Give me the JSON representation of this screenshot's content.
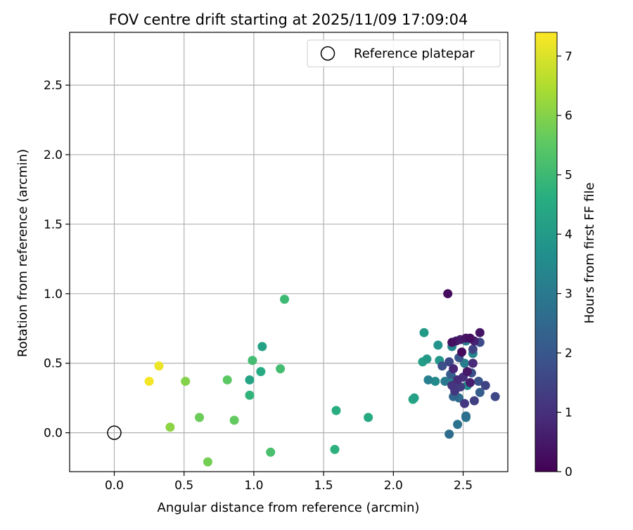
{
  "chart_data": {
    "type": "scatter",
    "title": "FOV centre drift starting at 2025/11/09 17:09:04",
    "xlabel": "Angular distance from reference (arcmin)",
    "ylabel": "Rotation from reference (arcmin)",
    "xlim": [
      -0.32,
      2.82
    ],
    "ylim": [
      -0.28,
      2.88
    ],
    "xticks": [
      "0.0",
      "0.5",
      "1.0",
      "1.5",
      "2.0",
      "2.5"
    ],
    "xtick_values": [
      0.0,
      0.5,
      1.0,
      1.5,
      2.0,
      2.5
    ],
    "yticks": [
      "0.0",
      "0.5",
      "1.0",
      "1.5",
      "2.0",
      "2.5"
    ],
    "ytick_values": [
      0.0,
      0.5,
      1.0,
      1.5,
      2.0,
      2.5
    ],
    "grid": true,
    "legend": {
      "location": "upper right",
      "label": "Reference platepar"
    },
    "reference_point": {
      "x": 0.0,
      "y": 0.0
    },
    "colorbar": {
      "label": "Hours from first FF file",
      "colormap": "viridis",
      "range": [
        0,
        7.4
      ],
      "ticks": [
        "0",
        "1",
        "2",
        "3",
        "4",
        "5",
        "6",
        "7"
      ],
      "tick_values": [
        0,
        1,
        2,
        3,
        4,
        5,
        6,
        7
      ]
    },
    "points": [
      {
        "x": 2.39,
        "y": 1.0,
        "h": 0.2
      },
      {
        "x": 2.62,
        "y": 0.72,
        "h": 0.4
      },
      {
        "x": 2.42,
        "y": 0.65,
        "h": 0.3
      },
      {
        "x": 2.45,
        "y": 0.66,
        "h": 0.5
      },
      {
        "x": 2.48,
        "y": 0.67,
        "h": 0.6
      },
      {
        "x": 2.52,
        "y": 0.68,
        "h": 0.4
      },
      {
        "x": 2.55,
        "y": 0.68,
        "h": 0.3
      },
      {
        "x": 2.58,
        "y": 0.66,
        "h": 0.7
      },
      {
        "x": 2.49,
        "y": 0.58,
        "h": 0.2
      },
      {
        "x": 2.43,
        "y": 0.46,
        "h": 0.8
      },
      {
        "x": 2.46,
        "y": 0.38,
        "h": 0.9
      },
      {
        "x": 2.5,
        "y": 0.4,
        "h": 1.0
      },
      {
        "x": 2.53,
        "y": 0.44,
        "h": 0.5
      },
      {
        "x": 2.55,
        "y": 0.36,
        "h": 0.6
      },
      {
        "x": 2.42,
        "y": 0.34,
        "h": 1.1
      },
      {
        "x": 2.44,
        "y": 0.3,
        "h": 1.2
      },
      {
        "x": 2.48,
        "y": 0.33,
        "h": 1.3
      },
      {
        "x": 2.57,
        "y": 0.5,
        "h": 0.9
      },
      {
        "x": 2.51,
        "y": 0.21,
        "h": 1.2
      },
      {
        "x": 2.58,
        "y": 0.23,
        "h": 1.4
      },
      {
        "x": 2.66,
        "y": 0.34,
        "h": 1.5
      },
      {
        "x": 2.73,
        "y": 0.26,
        "h": 1.6
      },
      {
        "x": 2.62,
        "y": 0.65,
        "h": 1.7
      },
      {
        "x": 2.57,
        "y": 0.6,
        "h": 1.5
      },
      {
        "x": 2.56,
        "y": 0.43,
        "h": 1.8
      },
      {
        "x": 2.61,
        "y": 0.37,
        "h": 1.9
      },
      {
        "x": 2.47,
        "y": 0.54,
        "h": 2.0
      },
      {
        "x": 2.4,
        "y": 0.51,
        "h": 1.6
      },
      {
        "x": 2.35,
        "y": 0.48,
        "h": 1.8
      },
      {
        "x": 2.41,
        "y": 0.42,
        "h": 2.2
      },
      {
        "x": 2.43,
        "y": 0.26,
        "h": 2.4
      },
      {
        "x": 2.47,
        "y": 0.25,
        "h": 2.6
      },
      {
        "x": 2.62,
        "y": 0.29,
        "h": 2.2
      },
      {
        "x": 2.52,
        "y": 0.12,
        "h": 2.7
      },
      {
        "x": 2.52,
        "y": 0.11,
        "h": 2.9
      },
      {
        "x": 2.46,
        "y": 0.06,
        "h": 2.8
      },
      {
        "x": 2.4,
        "y": -0.01,
        "h": 2.6
      },
      {
        "x": 2.51,
        "y": 0.5,
        "h": 3.1
      },
      {
        "x": 2.52,
        "y": 0.66,
        "h": 3.2
      },
      {
        "x": 2.42,
        "y": 0.62,
        "h": 3.3
      },
      {
        "x": 2.37,
        "y": 0.37,
        "h": 3.0
      },
      {
        "x": 2.42,
        "y": 0.4,
        "h": 3.4
      },
      {
        "x": 2.25,
        "y": 0.38,
        "h": 3.2
      },
      {
        "x": 2.3,
        "y": 0.37,
        "h": 3.5
      },
      {
        "x": 2.53,
        "y": 0.34,
        "h": 3.6
      },
      {
        "x": 2.57,
        "y": 0.57,
        "h": 3.3
      },
      {
        "x": 2.32,
        "y": 0.63,
        "h": 3.8
      },
      {
        "x": 2.33,
        "y": 0.52,
        "h": 3.9
      },
      {
        "x": 2.24,
        "y": 0.53,
        "h": 4.0
      },
      {
        "x": 2.21,
        "y": 0.51,
        "h": 4.1
      },
      {
        "x": 2.22,
        "y": 0.72,
        "h": 4.0
      },
      {
        "x": 2.15,
        "y": 0.25,
        "h": 4.2
      },
      {
        "x": 2.14,
        "y": 0.24,
        "h": 4.4
      },
      {
        "x": 1.82,
        "y": 0.11,
        "h": 4.5
      },
      {
        "x": 1.59,
        "y": 0.16,
        "h": 4.6
      },
      {
        "x": 1.58,
        "y": -0.12,
        "h": 4.7
      },
      {
        "x": 1.06,
        "y": 0.62,
        "h": 4.2
      },
      {
        "x": 0.97,
        "y": 0.38,
        "h": 4.3
      },
      {
        "x": 1.05,
        "y": 0.44,
        "h": 4.5
      },
      {
        "x": 0.97,
        "y": 0.27,
        "h": 4.8
      },
      {
        "x": 1.22,
        "y": 0.96,
        "h": 5.0
      },
      {
        "x": 0.99,
        "y": 0.52,
        "h": 5.1
      },
      {
        "x": 1.19,
        "y": 0.46,
        "h": 5.1
      },
      {
        "x": 1.12,
        "y": -0.14,
        "h": 5.2
      },
      {
        "x": 0.81,
        "y": 0.38,
        "h": 5.5
      },
      {
        "x": 0.86,
        "y": 0.09,
        "h": 5.6
      },
      {
        "x": 0.61,
        "y": 0.11,
        "h": 5.7
      },
      {
        "x": 0.67,
        "y": -0.21,
        "h": 5.8
      },
      {
        "x": 0.51,
        "y": 0.37,
        "h": 6.0
      },
      {
        "x": 0.4,
        "y": 0.04,
        "h": 6.1
      },
      {
        "x": 0.32,
        "y": 0.48,
        "h": 7.2
      },
      {
        "x": 0.25,
        "y": 0.37,
        "h": 7.3
      }
    ]
  }
}
